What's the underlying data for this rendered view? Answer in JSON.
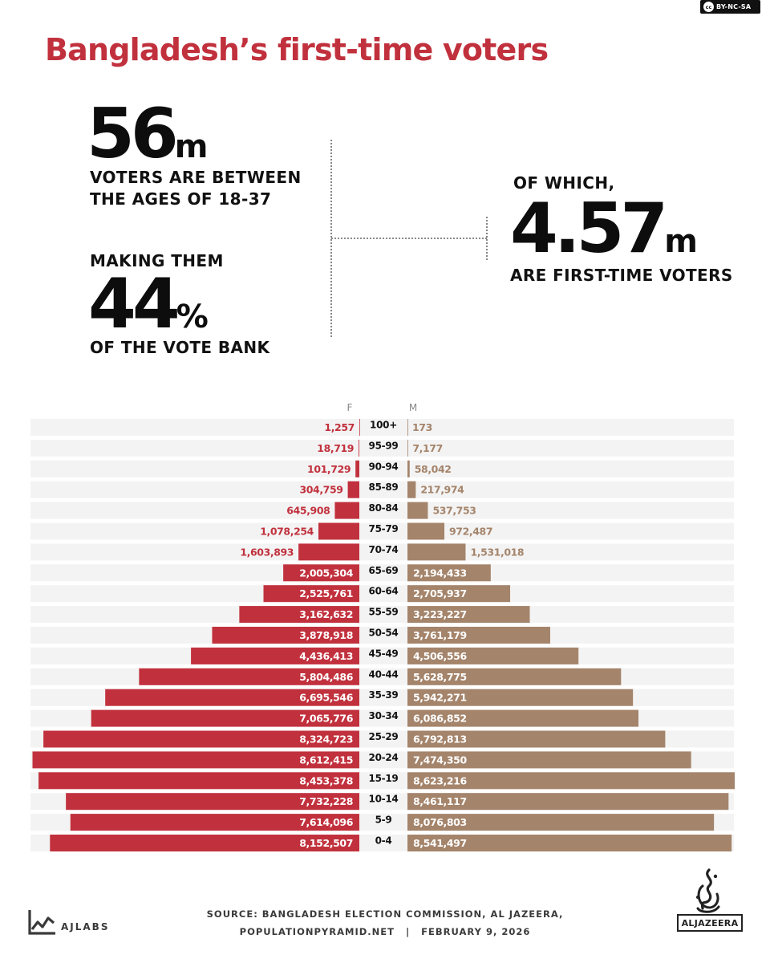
{
  "license": {
    "icon": "cc-icon",
    "label": "BY-NC-SA"
  },
  "title": "Bangladesh’s first-time voters",
  "stats": {
    "voters": {
      "number": "56",
      "unit": "m",
      "caption": [
        "VOTERS ARE BETWEEN",
        "THE AGES OF 18-37"
      ]
    },
    "share": {
      "pre": "MAKING THEM",
      "number": "44",
      "unit": "%",
      "caption": "OF THE VOTE BANK"
    },
    "first_time": {
      "pre": "OF WHICH,",
      "number": "4.57",
      "unit": "m",
      "caption": "ARE FIRST-TIME VOTERS"
    }
  },
  "chart_data": {
    "type": "bar",
    "orientation": "horizontal",
    "layout": "population pyramid",
    "categories": [
      "100+",
      "95-99",
      "90-94",
      "85-89",
      "80-84",
      "75-79",
      "70-74",
      "65-69",
      "60-64",
      "55-59",
      "50-54",
      "45-49",
      "40-44",
      "35-39",
      "30-34",
      "25-29",
      "20-24",
      "15-19",
      "10-14",
      "5-9",
      "0-4"
    ],
    "series": [
      {
        "name": "F",
        "color": "#c1313d",
        "label_color_outside": "#c1313d",
        "side": "left",
        "values": [
          1257,
          18719,
          101729,
          304759,
          645908,
          1078254,
          1603893,
          2005304,
          2525761,
          3162632,
          3878918,
          4436413,
          5804486,
          6695546,
          7065776,
          8324723,
          8612415,
          8453378,
          7732228,
          7614096,
          8152507
        ],
        "labels": [
          "1,257",
          "18,719",
          "101,729",
          "304,759",
          "645,908",
          "1,078,254",
          "1,603,893",
          "2,005,304",
          "2,525,761",
          "3,162,632",
          "3,878,918",
          "4,436,413",
          "5,804,486",
          "6,695,546",
          "7,065,776",
          "8,324,723",
          "8,612,415",
          "8,453,378",
          "7,732,228",
          "7,614,096",
          "8,152,507"
        ]
      },
      {
        "name": "M",
        "color": "#a4846b",
        "label_color_outside": "#a4846b",
        "side": "right",
        "values": [
          173,
          7177,
          58042,
          217974,
          537753,
          972487,
          1531018,
          2194433,
          2705937,
          3223227,
          3761179,
          4506556,
          5628775,
          5942271,
          6086852,
          6792813,
          7474350,
          8623216,
          8461117,
          8076803,
          8541497
        ],
        "labels": [
          "173",
          "7,177",
          "58,042",
          "217,974",
          "537,753",
          "972,487",
          "1,531,018",
          "2,194,433",
          "2,705,937",
          "3,223,227",
          "3,761,179",
          "4,506,556",
          "5,628,775",
          "5,942,271",
          "6,086,852",
          "6,792,813",
          "7,474,350",
          "8,623,216",
          "8,461,117",
          "8,076,803",
          "8,541,497"
        ]
      }
    ],
    "xlim": [
      0,
      8623216
    ],
    "row_background": "#f3f3f3",
    "grid": false
  },
  "footer": {
    "brand": "AJLABS",
    "source_line1": "SOURCE: BANGLADESH ELECTION COMMISSION, AL JAZEERA,",
    "source_line2a": "POPULATIONPYRAMID.NET",
    "separator": "|",
    "source_line2b": "FEBRUARY 9, 2026",
    "publisher": "ALJAZEERA",
    "publisher_icon": "aljazeera-calligraphy-logo-icon"
  }
}
